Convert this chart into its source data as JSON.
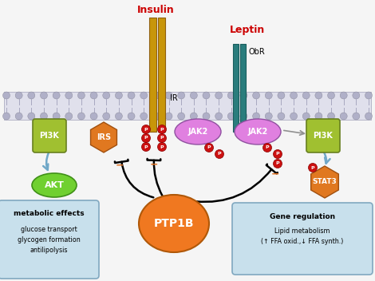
{
  "bg_color": "#f5f5f5",
  "insulin_label": "Insulin",
  "leptin_label": "Leptin",
  "ir_label": "IR",
  "obr_label": "ObR",
  "pi3k_left_label": "PI3K",
  "irs_label": "IRS",
  "jak2_left_label": "JAK2",
  "jak2_right_label": "JAK2",
  "pi3k_right_label": "PI3K",
  "akt_label": "AKT",
  "stat3_label": "STAT3",
  "ptpib_label": "PTP1B",
  "metabolic_title": "metabolic effects",
  "metabolic_body": "glucose transport\nglycogen formation\nantilipolysis",
  "gene_title": "Gene regulation",
  "gene_body": "Lipid metabolism\n(↑ FFA oxid.,↓ FFA synth.)",
  "colors": {
    "insulin_receptor": "#c8960a",
    "leptin_receptor": "#2a7d7d",
    "pi3k": "#a0c030",
    "irs": "#e07820",
    "jak2": "#e080e0",
    "akt": "#70d030",
    "stat3": "#e07820",
    "ptpib": "#f07820",
    "phospho": "#cc1111",
    "arrow_blue": "#70a8c8",
    "box_bg": "#c8e0ec",
    "box_border": "#80a8c0",
    "minus_color": "#e07020",
    "mem_fill": "#e0e0ec",
    "mem_head": "#b0b0c8",
    "mem_border": "#a0a0b8"
  }
}
